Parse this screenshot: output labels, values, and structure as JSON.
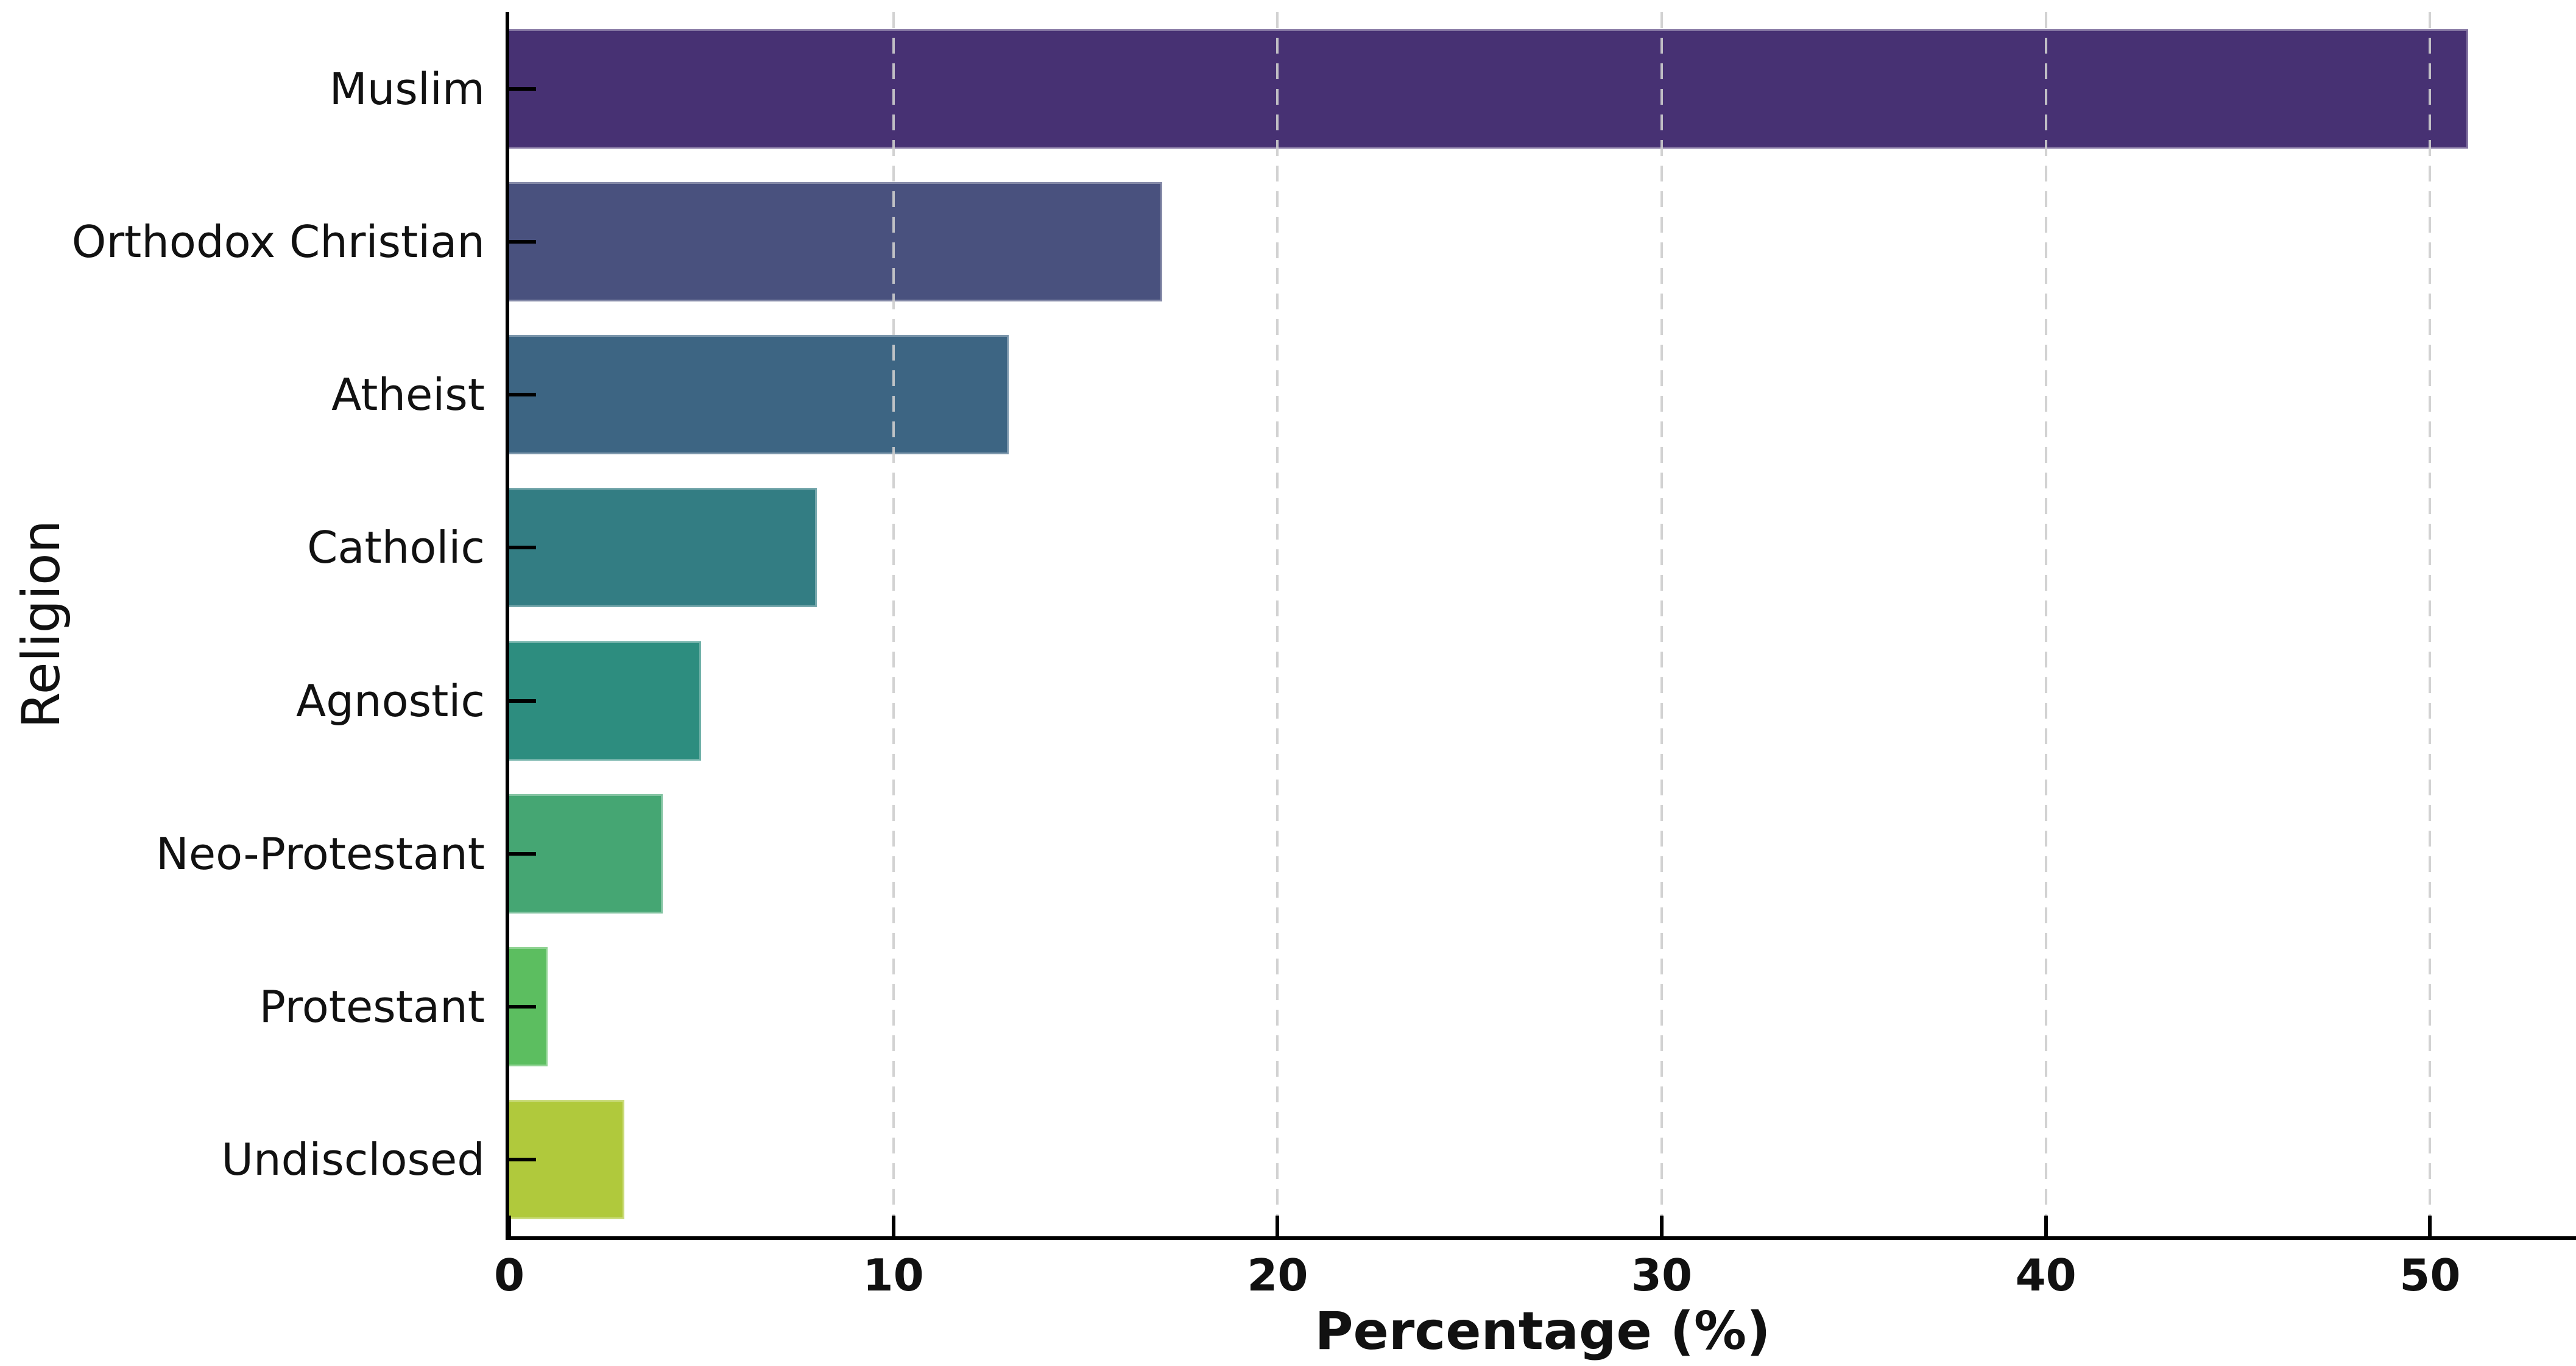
{
  "chart_data": {
    "type": "bar",
    "orientation": "horizontal",
    "title": "",
    "xlabel": "Percentage (%)",
    "ylabel": "Religion",
    "categories": [
      "Muslim",
      "Orthodox Christian",
      "Atheist",
      "Catholic",
      "Agnostic",
      "Neo-Protestant",
      "Protestant",
      "Undisclosed"
    ],
    "values": [
      51,
      17,
      13,
      8,
      5,
      4,
      1,
      3
    ],
    "bar_colors": [
      "#473173",
      "#49517e",
      "#3d6583",
      "#337d83",
      "#2d8d7f",
      "#45a673",
      "#5cbe60",
      "#b0c93c"
    ],
    "xticks": [
      0,
      10,
      20,
      30,
      40,
      50
    ],
    "xlim": [
      0,
      53.8
    ],
    "grid": "vertical-dashed",
    "grid_color": "#cdcdcd",
    "grid_above_bars": true,
    "axis_color": "#000000",
    "text_color": "#111111",
    "background": "#ffffff",
    "legend_position": "none"
  }
}
